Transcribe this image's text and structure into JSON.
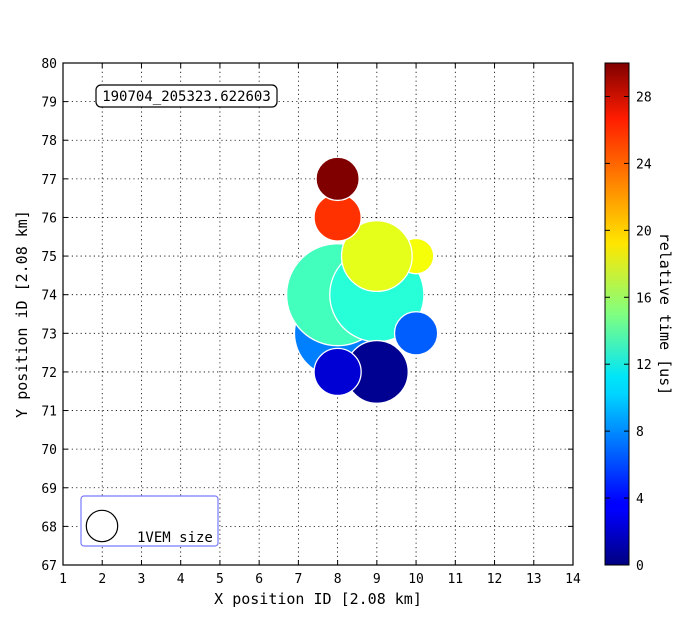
{
  "chart_data": {
    "type": "scatter",
    "title": "",
    "annotation": "190704_205323.622603",
    "xlabel": "X position ID [2.08 km]",
    "ylabel": "Y position iD [2.08 km]",
    "xlim": [
      1,
      14
    ],
    "ylim": [
      67,
      80
    ],
    "x_ticks": [
      1,
      2,
      3,
      4,
      5,
      6,
      7,
      8,
      9,
      10,
      11,
      12,
      13,
      14
    ],
    "y_ticks": [
      67,
      68,
      69,
      70,
      71,
      72,
      73,
      74,
      75,
      76,
      77,
      78,
      79,
      80
    ],
    "grid": true,
    "colorbar": {
      "label": "relative time [us]",
      "range": [
        0,
        30
      ],
      "ticks": [
        0,
        4,
        8,
        12,
        16,
        20,
        24,
        28
      ],
      "colormap": "jet"
    },
    "size_legend": {
      "label": "1VEM size",
      "position": "bottom-left",
      "reference_radius_x_units": 0.4
    },
    "points": [
      {
        "x": 8,
        "y": 73,
        "radius_x_units": 1.1,
        "time_us": 7.5
      },
      {
        "x": 8,
        "y": 74,
        "radius_x_units": 1.3,
        "time_us": 13.2
      },
      {
        "x": 9,
        "y": 74,
        "radius_x_units": 1.2,
        "time_us": 12.4
      },
      {
        "x": 9,
        "y": 72,
        "radius_x_units": 0.8,
        "time_us": 0.5
      },
      {
        "x": 8,
        "y": 72,
        "radius_x_units": 0.6,
        "time_us": 2.5
      },
      {
        "x": 10,
        "y": 73,
        "radius_x_units": 0.55,
        "time_us": 6.5
      },
      {
        "x": 10,
        "y": 75,
        "radius_x_units": 0.45,
        "time_us": 18.5
      },
      {
        "x": 9,
        "y": 75,
        "radius_x_units": 0.9,
        "time_us": 18.0
      },
      {
        "x": 8,
        "y": 76,
        "radius_x_units": 0.6,
        "time_us": 24.8
      },
      {
        "x": 8,
        "y": 77,
        "radius_x_units": 0.55,
        "time_us": 30.0
      }
    ]
  }
}
